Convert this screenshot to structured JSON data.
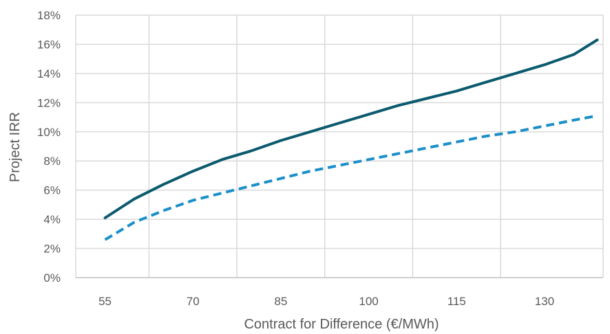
{
  "chart_data": {
    "type": "line",
    "title": "",
    "xlabel": "Contract for Difference (€/MWh)",
    "ylabel": "Project IRR",
    "xlim": [
      50,
      140
    ],
    "ylim": [
      0,
      18
    ],
    "x_ticks": [
      55,
      70,
      85,
      100,
      115,
      130
    ],
    "x_tick_labels": [
      "55",
      "70",
      "85",
      "100",
      "115",
      "130"
    ],
    "y_ticks": [
      0,
      2,
      4,
      6,
      8,
      10,
      12,
      14,
      16,
      18
    ],
    "y_tick_labels": [
      "0%",
      "2%",
      "4%",
      "6%",
      "8%",
      "10%",
      "12%",
      "14%",
      "16%",
      "18%"
    ],
    "grid": true,
    "legend": "none",
    "series": [
      {
        "style": "solid",
        "color": "#0b5a6e",
        "x": [
          55,
          60,
          65,
          70,
          75,
          80,
          85,
          90,
          95,
          100,
          105,
          110,
          115,
          120,
          125,
          130,
          135,
          139
        ],
        "values": [
          4.1,
          5.4,
          6.4,
          7.3,
          8.1,
          8.7,
          9.4,
          10.0,
          10.6,
          11.2,
          11.8,
          12.3,
          12.8,
          13.4,
          14.0,
          14.6,
          15.3,
          16.3
        ]
      },
      {
        "style": "dashed",
        "color": "#1b8fc9",
        "x": [
          55,
          60,
          65,
          70,
          75,
          80,
          85,
          90,
          95,
          100,
          105,
          110,
          115,
          120,
          125,
          130,
          135,
          139
        ],
        "values": [
          2.6,
          3.8,
          4.6,
          5.3,
          5.8,
          6.3,
          6.8,
          7.3,
          7.7,
          8.1,
          8.5,
          8.9,
          9.3,
          9.7,
          10.0,
          10.4,
          10.8,
          11.1
        ]
      }
    ]
  }
}
